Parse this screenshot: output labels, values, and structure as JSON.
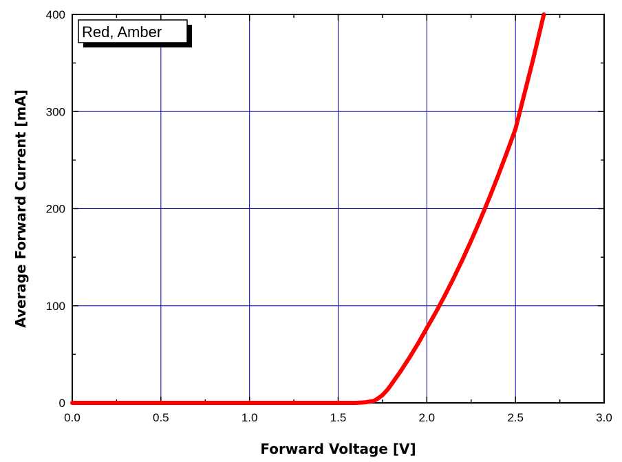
{
  "chart_data": {
    "type": "line",
    "xlabel": "Forward Voltage [V]",
    "ylabel": "Average Forward Current [mA]",
    "xlim": [
      0,
      3.0
    ],
    "ylim": [
      0,
      400
    ],
    "x_ticks": [
      0.0,
      0.5,
      1.0,
      1.5,
      2.0,
      2.5,
      3.0
    ],
    "x_tick_labels": [
      "0.0",
      "0.5",
      "1.0",
      "1.5",
      "2.0",
      "2.5",
      "3.0"
    ],
    "y_ticks": [
      0,
      100,
      200,
      300,
      400
    ],
    "y_tick_labels": [
      "0",
      "100",
      "200",
      "300",
      "400"
    ],
    "grid": true,
    "legend": {
      "text": "Red, Amber",
      "placement": "top-left"
    },
    "series": [
      {
        "name": "Red, Amber",
        "color": "#ff0000",
        "x": [
          0.0,
          0.5,
          1.0,
          1.5,
          1.6,
          1.65,
          1.7,
          1.72,
          1.75,
          1.78,
          1.8,
          1.85,
          1.9,
          1.95,
          2.0,
          2.05,
          2.1,
          2.15,
          2.2,
          2.25,
          2.3,
          2.35,
          2.4,
          2.45,
          2.5,
          2.55,
          2.6,
          2.66
        ],
        "y": [
          0,
          0,
          0,
          0,
          0,
          0.5,
          2,
          4,
          8,
          14,
          19,
          32,
          46,
          61,
          77,
          93,
          110,
          128,
          147,
          167,
          188,
          210,
          233,
          257,
          282,
          318,
          354,
          400
        ]
      }
    ]
  },
  "colors": {
    "grid": "#0000aa",
    "axes": "#000000",
    "line": "#ff0000",
    "background": "#ffffff"
  }
}
